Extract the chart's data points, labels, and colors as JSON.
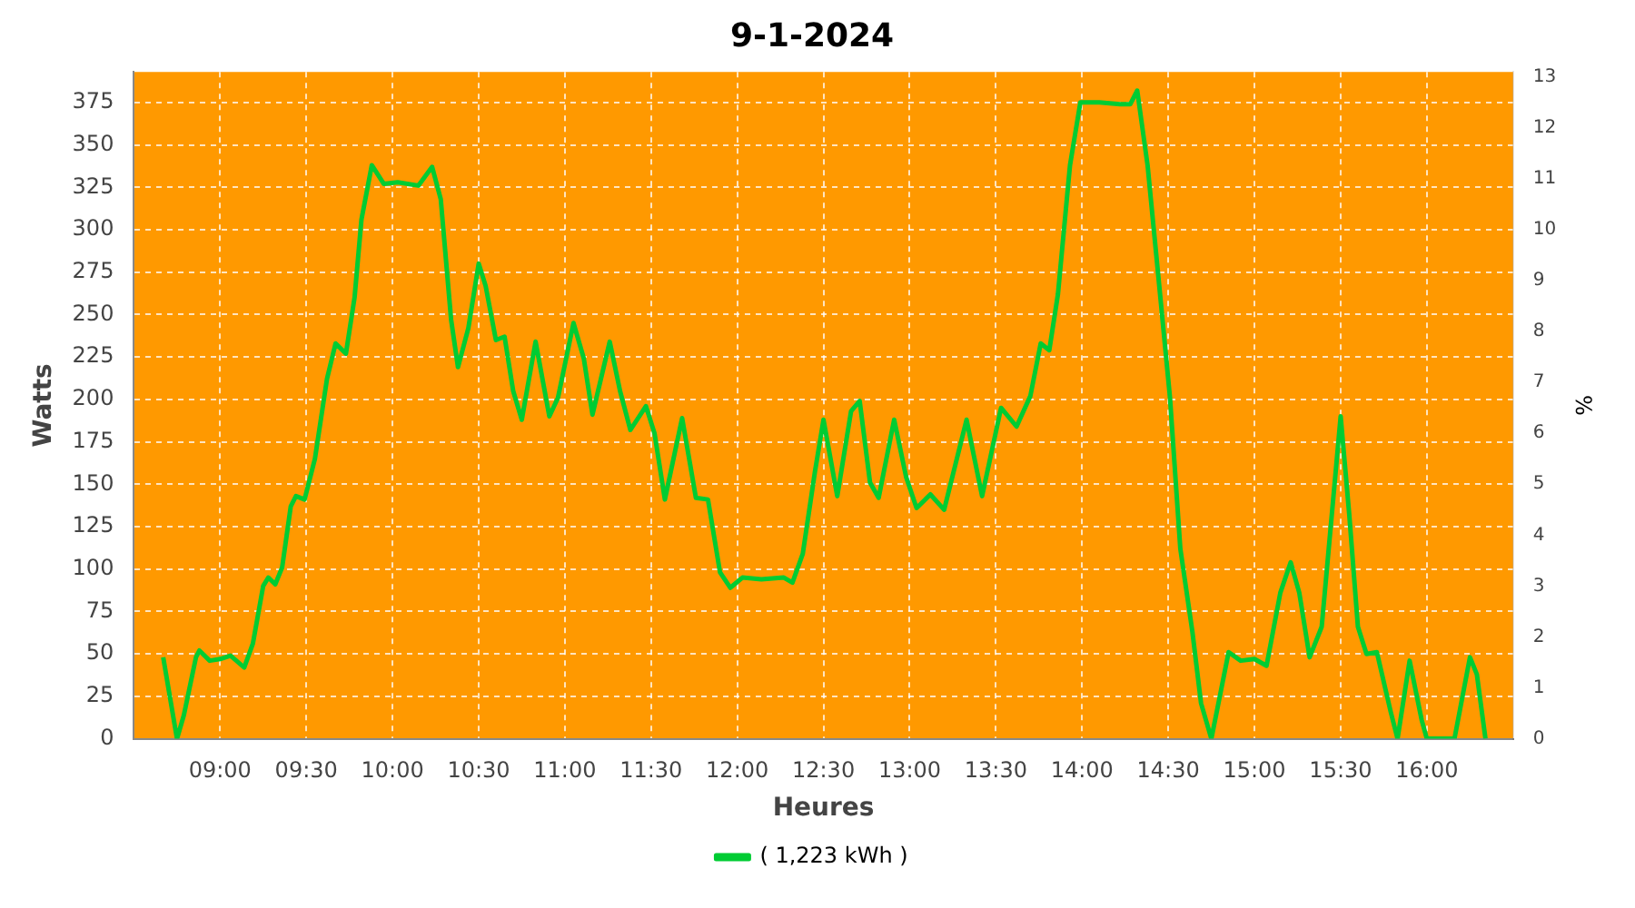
{
  "chart_data": {
    "type": "line",
    "title": "9-1-2024",
    "xlabel": "Heures",
    "ylabel": "Watts",
    "y2label": "%",
    "xlim": [
      8.5,
      16.5
    ],
    "xticks": [
      {
        "value": 9,
        "label": "09:00"
      },
      {
        "value": 9.5,
        "label": "09:30"
      },
      {
        "value": 10,
        "label": "10:00"
      },
      {
        "value": 10.5,
        "label": "10:30"
      },
      {
        "value": 11,
        "label": "11:00"
      },
      {
        "value": 11.5,
        "label": "11:30"
      },
      {
        "value": 12,
        "label": "12:00"
      },
      {
        "value": 12.5,
        "label": "12:30"
      },
      {
        "value": 13,
        "label": "13:00"
      },
      {
        "value": 13.5,
        "label": "13:30"
      },
      {
        "value": 14,
        "label": "14:00"
      },
      {
        "value": 14.5,
        "label": "14:30"
      },
      {
        "value": 15,
        "label": "15:00"
      },
      {
        "value": 15.5,
        "label": "15:30"
      },
      {
        "value": 16,
        "label": "16:00"
      }
    ],
    "ylim": [
      0,
      393
    ],
    "yticks": [
      0,
      25,
      50,
      75,
      100,
      125,
      150,
      175,
      200,
      225,
      250,
      275,
      300,
      325,
      350,
      375
    ],
    "y2lim": [
      0,
      13.1
    ],
    "y2ticks": [
      0,
      1,
      2,
      3,
      4,
      5,
      6,
      7,
      8,
      9,
      10,
      11,
      12,
      13
    ],
    "grid": true,
    "legend": "bottom",
    "marker": "none",
    "line_style": "solid",
    "series": [
      {
        "name": "( 1,223 kWh )",
        "color": "#00cc33",
        "x": [
          8.67,
          8.75,
          8.79,
          8.86,
          8.88,
          8.94,
          9.0,
          9.06,
          9.14,
          9.19,
          9.25,
          9.28,
          9.32,
          9.36,
          9.41,
          9.44,
          9.49,
          9.55,
          9.62,
          9.67,
          9.73,
          9.78,
          9.82,
          9.88,
          9.95,
          10.03,
          10.15,
          10.23,
          10.28,
          10.34,
          10.38,
          10.44,
          10.5,
          10.54,
          10.6,
          10.65,
          10.7,
          10.75,
          10.83,
          10.91,
          10.96,
          11.05,
          11.11,
          11.16,
          11.26,
          11.32,
          11.38,
          11.47,
          11.52,
          11.58,
          11.68,
          11.76,
          11.83,
          11.9,
          11.96,
          12.03,
          12.14,
          12.27,
          12.32,
          12.38,
          12.45,
          12.5,
          12.58,
          12.66,
          12.71,
          12.77,
          12.82,
          12.91,
          12.98,
          13.04,
          13.12,
          13.2,
          13.33,
          13.42,
          13.53,
          13.62,
          13.7,
          13.76,
          13.81,
          13.86,
          13.93,
          13.99,
          14.1,
          14.22,
          14.28,
          14.32,
          14.38,
          14.46,
          14.51,
          14.57,
          14.64,
          14.69,
          14.75,
          14.85,
          14.92,
          15.0,
          15.07,
          15.15,
          15.21,
          15.26,
          15.32,
          15.39,
          15.5,
          15.55,
          15.6,
          15.65,
          15.71,
          15.79,
          15.83,
          15.9,
          15.97,
          16.0,
          16.16,
          16.19,
          16.25,
          16.29,
          16.34
        ],
        "values": [
          48,
          0,
          14,
          48,
          52,
          46,
          47,
          49,
          42,
          56,
          90,
          95,
          91,
          101,
          137,
          143,
          141,
          165,
          212,
          233,
          227,
          260,
          306,
          338,
          327,
          328,
          326,
          337,
          318,
          247,
          219,
          242,
          280,
          267,
          235,
          237,
          205,
          188,
          234,
          190,
          201,
          245,
          224,
          191,
          234,
          205,
          182,
          196,
          180,
          141,
          189,
          142,
          141,
          98,
          89,
          95,
          94,
          95,
          92,
          109,
          157,
          188,
          143,
          193,
          199,
          151,
          142,
          188,
          154,
          136,
          144,
          135,
          188,
          143,
          195,
          184,
          202,
          233,
          229,
          262,
          338,
          375,
          375,
          374,
          374,
          382,
          338,
          254,
          201,
          112,
          63,
          21,
          0,
          51,
          46,
          47,
          43,
          86,
          104,
          86,
          48,
          66,
          190,
          132,
          66,
          50,
          51,
          16,
          0,
          46,
          11,
          0,
          0,
          16,
          48,
          38,
          0
        ]
      }
    ]
  }
}
